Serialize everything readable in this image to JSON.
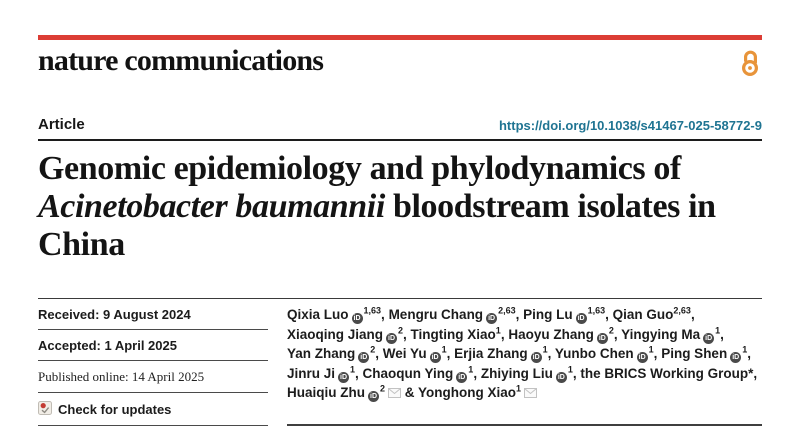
{
  "colors": {
    "brand_red": "#dc3d35",
    "doi_teal": "#1f7492",
    "open_access_orange": "#e8943a",
    "orcid_gray": "#4a4a4a"
  },
  "masthead": {
    "journal": "nature communications",
    "open_access_icon": "open-access-lock-icon"
  },
  "article_bar": {
    "type_label": "Article",
    "doi": "https://doi.org/10.1038/s41467-025-58772-9"
  },
  "title": {
    "prefix": "Genomic epidemiology and phylodynamics of ",
    "italic": "Acinetobacter baumannii",
    "suffix": " bloodstream isolates in China"
  },
  "dates": {
    "received": "Received: 9 August 2024",
    "accepted": "Accepted: 1 April 2025",
    "published": "Published online: 14 April 2025",
    "check_updates": "Check for updates"
  },
  "authors": [
    {
      "name": "Qixia Luo",
      "orcid": true,
      "sup": "1,63",
      "email": false,
      "joiner": ", ",
      "break_after": false
    },
    {
      "name": "Mengru Chang",
      "orcid": true,
      "sup": "2,63",
      "email": false,
      "joiner": ", ",
      "break_after": false
    },
    {
      "name": "Ping Lu",
      "orcid": true,
      "sup": "1,63",
      "email": false,
      "joiner": ", ",
      "break_after": false
    },
    {
      "name": "Qian Guo",
      "orcid": false,
      "sup": "2,63",
      "email": false,
      "joiner": ", ",
      "break_after": true
    },
    {
      "name": "Xiaoqing Jiang",
      "orcid": true,
      "sup": "2",
      "email": false,
      "joiner": ", ",
      "break_after": false
    },
    {
      "name": "Tingting Xiao",
      "orcid": false,
      "sup": "1",
      "email": false,
      "joiner": ", ",
      "break_after": false
    },
    {
      "name": "Haoyu Zhang",
      "orcid": true,
      "sup": "2",
      "email": false,
      "joiner": ", ",
      "break_after": false
    },
    {
      "name": "Yingying Ma",
      "orcid": true,
      "sup": "1",
      "email": false,
      "joiner": ", ",
      "break_after": true
    },
    {
      "name": "Yan Zhang",
      "orcid": true,
      "sup": "2",
      "email": false,
      "joiner": ", ",
      "break_after": false
    },
    {
      "name": "Wei Yu",
      "orcid": true,
      "sup": "1",
      "email": false,
      "joiner": ", ",
      "break_after": false
    },
    {
      "name": "Erjia Zhang",
      "orcid": true,
      "sup": "1",
      "email": false,
      "joiner": ", ",
      "break_after": false
    },
    {
      "name": "Yunbo Chen",
      "orcid": true,
      "sup": "1",
      "email": false,
      "joiner": ", ",
      "break_after": false
    },
    {
      "name": "Ping Shen",
      "orcid": true,
      "sup": "1",
      "email": false,
      "joiner": ", ",
      "break_after": true
    },
    {
      "name": "Jinru Ji",
      "orcid": true,
      "sup": "1",
      "email": false,
      "joiner": ", ",
      "break_after": false
    },
    {
      "name": "Chaoqun Ying",
      "orcid": true,
      "sup": "1",
      "email": false,
      "joiner": ", ",
      "break_after": false
    },
    {
      "name": "Zhiying Liu",
      "orcid": true,
      "sup": "1",
      "email": false,
      "joiner": ", ",
      "break_after": false
    },
    {
      "name": "the BRICS Working Group*",
      "orcid": false,
      "sup": "",
      "email": false,
      "joiner": ", ",
      "break_after": true
    },
    {
      "name": "Huaiqiu Zhu",
      "orcid": true,
      "sup": "2",
      "email": true,
      "joiner": " & ",
      "break_after": false
    },
    {
      "name": "Yonghong Xiao",
      "orcid": false,
      "sup": "1",
      "email": true,
      "joiner": "",
      "break_after": false
    }
  ],
  "icons": {
    "orcid_label": "iD"
  }
}
